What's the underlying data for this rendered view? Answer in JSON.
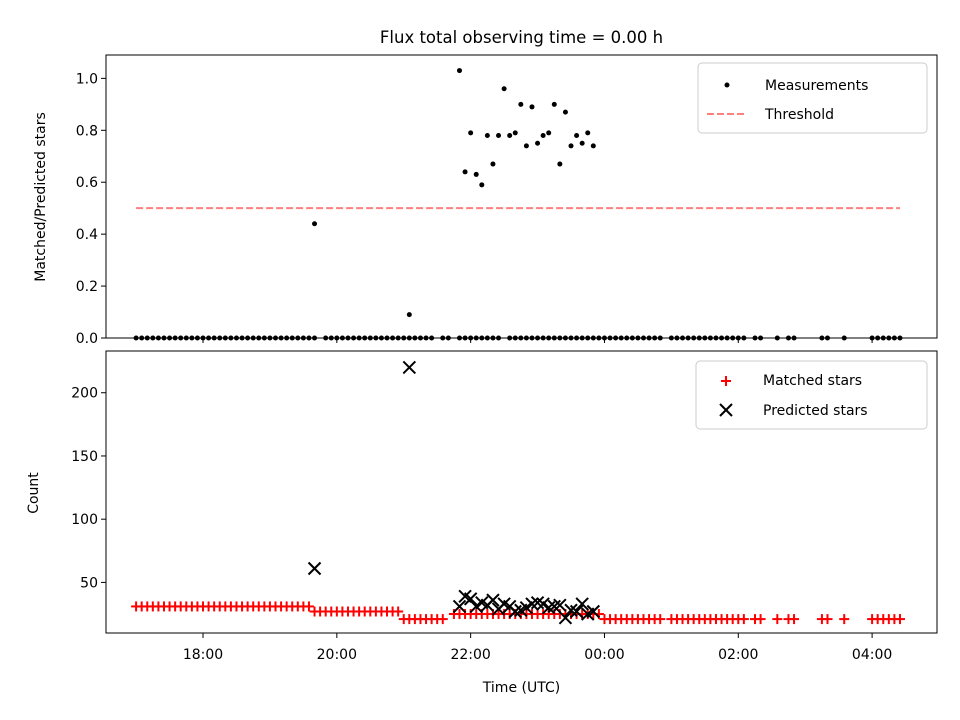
{
  "figure": {
    "title": "Flux total observing time = 0.00 h"
  },
  "chart_data": [
    {
      "type": "scatter",
      "title": "Flux total observing time = 0.00 h",
      "xlabel": "",
      "ylabel": "Matched/Predicted stars",
      "xlim_hours": [
        16.55,
        28.97
      ],
      "ylim": [
        0,
        1.09
      ],
      "yticks": [
        "0.0",
        "0.2",
        "0.4",
        "0.6",
        "0.8",
        "1.0"
      ],
      "legend_position": "top-right",
      "grid": false,
      "series": [
        {
          "name": "Measurements",
          "kind": "scatter",
          "color": "#000000",
          "x": [
            "17:00",
            "17:05",
            "17:10",
            "17:15",
            "17:20",
            "17:25",
            "17:30",
            "17:35",
            "17:40",
            "17:45",
            "17:50",
            "17:55",
            "18:00",
            "18:05",
            "18:10",
            "18:15",
            "18:20",
            "18:25",
            "18:30",
            "18:35",
            "18:40",
            "18:45",
            "18:50",
            "18:55",
            "19:00",
            "19:05",
            "19:10",
            "19:15",
            "19:20",
            "19:25",
            "19:30",
            "19:35",
            "19:40",
            "19:50",
            "19:55",
            "20:00",
            "20:05",
            "20:10",
            "20:15",
            "20:20",
            "20:25",
            "20:30",
            "20:35",
            "20:40",
            "20:45",
            "20:50",
            "20:55",
            "21:00",
            "21:05",
            "21:10",
            "21:15",
            "21:20",
            "21:25",
            "21:35",
            "21:40",
            "21:50",
            "21:55",
            "22:00",
            "22:05",
            "22:10",
            "22:15",
            "22:20",
            "22:25",
            "22:35",
            "22:40",
            "22:45",
            "22:50",
            "22:55",
            "23:00",
            "23:05",
            "23:15",
            "23:25",
            "23:35",
            "23:45",
            "23:55",
            "23:10",
            "23:20",
            "23:30",
            "23:40",
            "23:50",
            "00:00",
            "00:05",
            "00:10",
            "00:15",
            "00:20",
            "00:25",
            "00:30",
            "00:35",
            "00:40",
            "00:45",
            "00:50",
            "01:00",
            "01:05",
            "01:10",
            "01:15",
            "01:20",
            "01:25",
            "01:30",
            "01:35",
            "01:40",
            "01:45",
            "01:50",
            "01:55",
            "02:00",
            "02:05",
            "02:15",
            "02:20",
            "02:35",
            "02:45",
            "02:50",
            "03:15",
            "03:20",
            "03:35",
            "04:00",
            "04:05",
            "04:10",
            "04:15",
            "04:20",
            "04:25",
            "19:40",
            "21:05",
            "21:50",
            "21:55",
            "22:00",
            "22:05",
            "22:10",
            "22:15",
            "22:20",
            "22:25",
            "22:30",
            "22:35",
            "22:40",
            "22:45",
            "22:50",
            "22:55",
            "23:00",
            "23:05",
            "23:10",
            "23:15",
            "23:20",
            "23:25",
            "23:30",
            "23:35",
            "23:40",
            "23:45",
            "23:50"
          ],
          "y": [
            0,
            0,
            0,
            0,
            0,
            0,
            0,
            0,
            0,
            0,
            0,
            0,
            0,
            0,
            0,
            0,
            0,
            0,
            0,
            0,
            0,
            0,
            0,
            0,
            0,
            0,
            0,
            0,
            0,
            0,
            0,
            0,
            0,
            0,
            0,
            0,
            0,
            0,
            0,
            0,
            0,
            0,
            0,
            0,
            0,
            0,
            0,
            0,
            0,
            0,
            0,
            0,
            0,
            0,
            0,
            0,
            0,
            0,
            0,
            0,
            0,
            0,
            0,
            0,
            0,
            0,
            0,
            0,
            0,
            0,
            0,
            0,
            0,
            0,
            0,
            0,
            0,
            0,
            0,
            0,
            0,
            0,
            0,
            0,
            0,
            0,
            0,
            0,
            0,
            0,
            0,
            0,
            0,
            0,
            0,
            0,
            0,
            0,
            0,
            0,
            0,
            0,
            0,
            0,
            0,
            0,
            0,
            0,
            0,
            0,
            0,
            0,
            0,
            0,
            0,
            0,
            0,
            0,
            0,
            0.44,
            0.09,
            1.03,
            0.64,
            0.79,
            0.63,
            0.59,
            0.78,
            0.67,
            0.78,
            0.96,
            0.78,
            0.79,
            0.9,
            0.74,
            0.89,
            0.75,
            0.78,
            0.79,
            0.9,
            0.67,
            0.87,
            0.74,
            0.78,
            0.75,
            0.79,
            0.74
          ]
        },
        {
          "name": "Threshold",
          "kind": "line-dashed",
          "color": "#ff7f7f",
          "x": [
            "17:00",
            "04:25"
          ],
          "y": [
            0.5,
            0.5
          ]
        }
      ]
    },
    {
      "type": "scatter",
      "xlabel": "Time (UTC)",
      "ylabel": "Count",
      "xlim_hours": [
        16.55,
        28.97
      ],
      "ylim": [
        10,
        233
      ],
      "yticks": [
        "50",
        "100",
        "150",
        "200"
      ],
      "xticks": [
        "18:00",
        "20:00",
        "22:00",
        "00:00",
        "02:00",
        "04:00"
      ],
      "legend_position": "top-right",
      "grid": false,
      "series": [
        {
          "name": "Matched stars",
          "marker": "plus",
          "color": "#ff0000",
          "segments": [
            {
              "from": "17:00",
              "to": "19:35",
              "step_min": 5,
              "y": 31
            },
            {
              "from": "19:40",
              "to": "20:55",
              "step_min": 5,
              "y": 27
            },
            {
              "from": "21:00",
              "to": "21:35",
              "step_min": 5,
              "y": 21
            },
            {
              "from": "21:45",
              "to": "23:55",
              "step_min": 5,
              "y": 25
            },
            {
              "from": "00:00",
              "to": "00:50",
              "step_min": 5,
              "y": 21
            },
            {
              "from": "01:00",
              "to": "02:05",
              "step_min": 5,
              "y": 21
            }
          ],
          "x": [
            "02:15",
            "02:20",
            "02:35",
            "02:45",
            "02:50",
            "03:15",
            "03:20",
            "03:35",
            "04:00",
            "04:05",
            "04:10",
            "04:15",
            "04:20",
            "04:25"
          ],
          "y": [
            21,
            21,
            21,
            21,
            21,
            21,
            21,
            21,
            21,
            21,
            21,
            21,
            21,
            21
          ]
        },
        {
          "name": "Predicted stars",
          "marker": "x",
          "color": "#000000",
          "x": [
            "19:40",
            "21:05",
            "21:50",
            "21:55",
            "22:00",
            "22:05",
            "22:10",
            "22:15",
            "22:20",
            "22:25",
            "22:30",
            "22:35",
            "22:40",
            "22:45",
            "22:50",
            "22:55",
            "23:00",
            "23:05",
            "23:10",
            "23:15",
            "23:20",
            "23:25",
            "23:30",
            "23:35",
            "23:40",
            "23:45",
            "23:50"
          ],
          "y": [
            61,
            220,
            31,
            39,
            37,
            31,
            34,
            32,
            36,
            29,
            33,
            31,
            27,
            28,
            30,
            33,
            34,
            33,
            30,
            31,
            32,
            22,
            28,
            27,
            33,
            25,
            27
          ]
        }
      ]
    }
  ]
}
